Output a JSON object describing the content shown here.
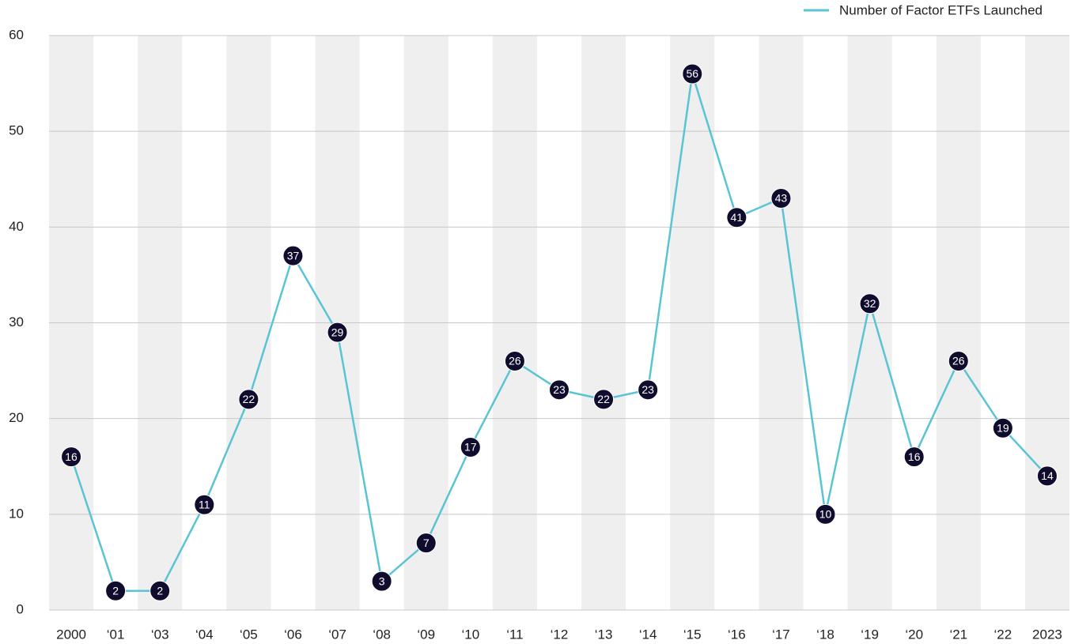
{
  "chart_data": {
    "type": "line",
    "categories": [
      "2000",
      "‘01",
      "‘03",
      "‘04",
      "‘05",
      "‘06",
      "‘07",
      "‘08",
      "‘09",
      "‘10",
      "‘11",
      "‘12",
      "‘13",
      "‘14",
      "‘15",
      "‘16",
      "‘17",
      "‘18",
      "‘19",
      "‘20",
      "‘21",
      "‘22",
      "2023"
    ],
    "series": [
      {
        "name": "Number of Factor ETFs Launched",
        "color": "#5bc4d4",
        "values": [
          16,
          2,
          2,
          11,
          22,
          37,
          29,
          3,
          7,
          17,
          26,
          23,
          22,
          23,
          56,
          41,
          43,
          10,
          32,
          16,
          26,
          19,
          14
        ]
      }
    ],
    "ylim": [
      0,
      60
    ],
    "yticks": [
      0,
      10,
      20,
      30,
      40,
      50,
      60
    ],
    "grid": true,
    "legend": "top-right",
    "marker_color": "#100c2e",
    "band_color": "#efefef"
  }
}
